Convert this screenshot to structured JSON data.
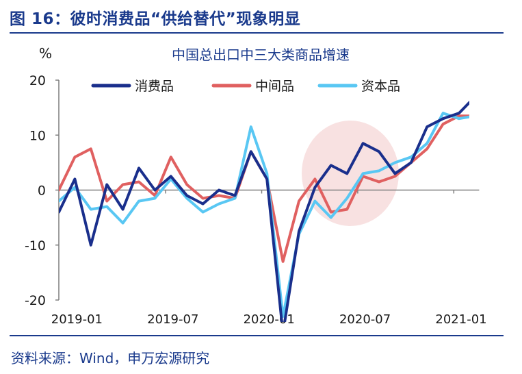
{
  "figure_title": "图 16：彼时消费品“供给替代”现象明显",
  "source": "资料来源：Wind，申万宏源研究",
  "chart_data": {
    "type": "line",
    "title": "中国总出口中三大类商品增速",
    "ylabel": "%",
    "xlabel": "",
    "ylim": [
      -20,
      20
    ],
    "yticks": [
      20,
      10,
      0,
      -10,
      -20
    ],
    "x_tick_labels": [
      "2019-01",
      "2019-07",
      "2020-01",
      "2020-07",
      "2021-01"
    ],
    "x_tick_index": [
      1,
      7,
      13,
      19,
      25
    ],
    "grid": false,
    "legend_position": "top",
    "highlight": "2020-04 to 2020-09 ellipse",
    "series": [
      {
        "name": "消费品",
        "color": "#1a2f8c",
        "values": [
          -4,
          2,
          -10,
          1,
          -3.5,
          4,
          0,
          2.5,
          -1,
          -2.5,
          0,
          -1,
          7,
          2,
          -26,
          -7.5,
          0.5,
          4.5,
          3,
          8.5,
          7,
          3,
          5,
          11.5,
          13,
          14,
          17
        ]
      },
      {
        "name": "中间品",
        "color": "#e06060",
        "values": [
          0,
          6,
          7.5,
          -2,
          1,
          1.5,
          -1,
          6,
          1,
          -1.5,
          -1,
          -1.5,
          7,
          2,
          -13,
          -2,
          2,
          -4,
          -3.5,
          2.5,
          1.5,
          2.5,
          5,
          7.5,
          12,
          13.5,
          13.5
        ]
      },
      {
        "name": "资本品",
        "color": "#59c7f3",
        "values": [
          -2,
          0.5,
          -3.5,
          -3,
          -6,
          -2,
          -1.5,
          2,
          -1.5,
          -4,
          -2.5,
          -1.5,
          11.5,
          3,
          -23,
          -8,
          -2,
          -5,
          -1.5,
          3,
          3.5,
          5,
          6,
          8.5,
          14,
          13,
          13.5
        ]
      }
    ]
  }
}
